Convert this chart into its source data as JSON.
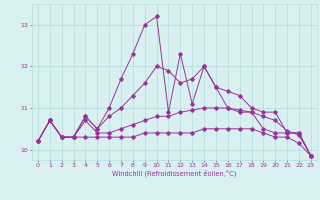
{
  "xlabel": "Windchill (Refroidissement éolien,°C)",
  "bg_color": "#d8f0f0",
  "grid_color": "#b8dede",
  "line_color": "#993399",
  "x": [
    0,
    1,
    2,
    3,
    4,
    5,
    6,
    7,
    8,
    9,
    10,
    11,
    12,
    13,
    14,
    15,
    16,
    17,
    18,
    19,
    20,
    21,
    22,
    23
  ],
  "series1": [
    10.2,
    10.7,
    10.3,
    10.3,
    10.3,
    10.3,
    10.3,
    10.3,
    10.3,
    10.4,
    10.4,
    10.4,
    10.4,
    10.4,
    10.5,
    10.5,
    10.5,
    10.5,
    10.5,
    10.4,
    10.3,
    10.3,
    10.15,
    9.85
  ],
  "series2": [
    10.2,
    10.7,
    10.3,
    10.3,
    10.7,
    10.4,
    10.4,
    10.5,
    10.6,
    10.7,
    10.8,
    10.8,
    10.9,
    10.95,
    11.0,
    11.0,
    11.0,
    10.95,
    10.9,
    10.8,
    10.7,
    10.45,
    10.35,
    9.85
  ],
  "series3": [
    10.2,
    10.7,
    10.3,
    10.3,
    10.8,
    10.5,
    10.8,
    11.0,
    11.3,
    11.6,
    12.0,
    11.9,
    11.6,
    11.7,
    12.0,
    11.5,
    11.4,
    11.3,
    11.0,
    10.9,
    10.9,
    10.4,
    10.4,
    9.85
  ],
  "series4": [
    10.2,
    10.7,
    10.3,
    10.3,
    10.8,
    10.5,
    11.0,
    11.7,
    12.3,
    13.0,
    13.2,
    10.9,
    12.3,
    11.1,
    12.0,
    11.5,
    11.0,
    10.9,
    10.9,
    10.5,
    10.4,
    10.4,
    10.4,
    9.85
  ],
  "ylim": [
    9.75,
    13.5
  ],
  "yticks": [
    10,
    11,
    12,
    13
  ],
  "xlim": [
    -0.5,
    23.5
  ]
}
